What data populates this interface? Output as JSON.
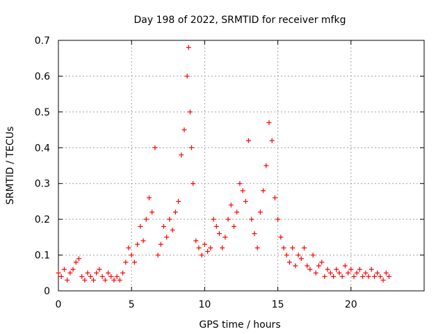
{
  "chart_data": {
    "type": "scatter",
    "title": "Day 198 of 2022, SRMTID for receiver mfkg",
    "xlabel": "GPS time / hours",
    "ylabel": "SRMTID / TECUs",
    "xlim": [
      0,
      25
    ],
    "ylim": [
      0,
      0.7
    ],
    "xticks": [
      0,
      5,
      10,
      15,
      20
    ],
    "xtick_labels": [
      "0",
      "5",
      "10",
      "15",
      "20"
    ],
    "yticks": [
      0,
      0.1,
      0.2,
      0.3,
      0.4,
      0.5,
      0.6,
      0.7
    ],
    "ytick_labels": [
      "0",
      "0.1",
      "0.2",
      "0.3",
      "0.4",
      "0.5",
      "0.6",
      "0.7"
    ],
    "grid": true,
    "marker": "+",
    "series": [
      {
        "name": "SRMTID",
        "color": "#ff0000",
        "x": [
          0.0,
          0.2,
          0.4,
          0.6,
          0.8,
          1.0,
          1.2,
          1.4,
          1.6,
          1.8,
          2.0,
          2.2,
          2.4,
          2.6,
          2.8,
          3.0,
          3.2,
          3.4,
          3.6,
          3.8,
          4.0,
          4.2,
          4.4,
          4.6,
          4.8,
          5.0,
          5.2,
          5.4,
          5.6,
          5.8,
          6.0,
          6.2,
          6.4,
          6.6,
          6.8,
          7.0,
          7.2,
          7.4,
          7.6,
          7.8,
          8.0,
          8.2,
          8.4,
          8.6,
          8.8,
          8.9,
          9.0,
          9.1,
          9.2,
          9.4,
          9.6,
          9.8,
          10.0,
          10.2,
          10.4,
          10.6,
          10.8,
          11.0,
          11.2,
          11.4,
          11.6,
          11.8,
          12.0,
          12.2,
          12.4,
          12.6,
          12.8,
          13.0,
          13.2,
          13.4,
          13.6,
          13.8,
          14.0,
          14.2,
          14.4,
          14.6,
          14.8,
          15.0,
          15.2,
          15.4,
          15.6,
          15.8,
          16.0,
          16.2,
          16.4,
          16.6,
          16.8,
          17.0,
          17.2,
          17.4,
          17.6,
          17.8,
          18.0,
          18.2,
          18.4,
          18.6,
          18.8,
          19.0,
          19.2,
          19.4,
          19.6,
          19.8,
          20.0,
          20.2,
          20.4,
          20.6,
          20.8,
          21.0,
          21.2,
          21.4,
          21.6,
          21.8,
          22.0,
          22.2,
          22.4,
          22.6
        ],
        "y": [
          0.05,
          0.04,
          0.06,
          0.03,
          0.05,
          0.06,
          0.08,
          0.09,
          0.04,
          0.03,
          0.05,
          0.04,
          0.03,
          0.05,
          0.06,
          0.04,
          0.03,
          0.05,
          0.04,
          0.03,
          0.04,
          0.03,
          0.05,
          0.08,
          0.12,
          0.1,
          0.08,
          0.13,
          0.18,
          0.14,
          0.2,
          0.26,
          0.22,
          0.4,
          0.1,
          0.13,
          0.18,
          0.15,
          0.2,
          0.17,
          0.22,
          0.25,
          0.38,
          0.45,
          0.6,
          0.68,
          0.5,
          0.4,
          0.3,
          0.14,
          0.12,
          0.1,
          0.13,
          0.11,
          0.12,
          0.2,
          0.18,
          0.16,
          0.12,
          0.15,
          0.2,
          0.24,
          0.18,
          0.22,
          0.3,
          0.28,
          0.25,
          0.42,
          0.2,
          0.16,
          0.12,
          0.22,
          0.28,
          0.35,
          0.47,
          0.42,
          0.26,
          0.2,
          0.15,
          0.12,
          0.1,
          0.08,
          0.12,
          0.07,
          0.1,
          0.09,
          0.12,
          0.07,
          0.06,
          0.1,
          0.05,
          0.07,
          0.08,
          0.04,
          0.06,
          0.05,
          0.04,
          0.06,
          0.05,
          0.04,
          0.07,
          0.05,
          0.06,
          0.04,
          0.05,
          0.06,
          0.04,
          0.05,
          0.04,
          0.06,
          0.04,
          0.05,
          0.04,
          0.03,
          0.05,
          0.04
        ]
      }
    ]
  }
}
